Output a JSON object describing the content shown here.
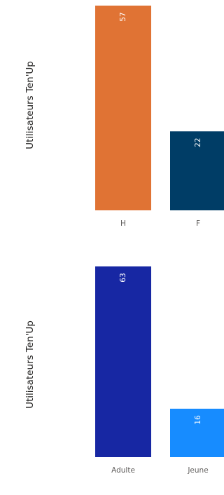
{
  "chart_data": [
    {
      "type": "bar",
      "ylabel": "Utilisateurs Ten'Up",
      "categories": [
        "H",
        "F"
      ],
      "values": [
        57,
        22
      ],
      "colors": [
        "#e07334",
        "#003d66"
      ],
      "data_labels": true,
      "grid": false
    },
    {
      "type": "bar",
      "ylabel": "Utilisateurs Ten'Up",
      "categories": [
        "Adulte",
        "Jeune"
      ],
      "values": [
        63,
        16
      ],
      "colors": [
        "#1727a3",
        "#178cff"
      ],
      "data_labels": true,
      "grid": false
    }
  ]
}
